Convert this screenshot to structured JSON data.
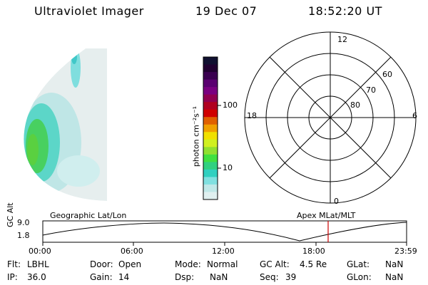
{
  "header": {
    "instrument": "Ultraviolet Imager",
    "date": "19 Dec 07",
    "time": "18:52:20 UT"
  },
  "colorbar": {
    "unit_label": "photon cm⁻²s⁻¹",
    "ticks": [
      "100",
      "10"
    ],
    "colors": [
      "#101030",
      "#200030",
      "#3a0050",
      "#5a0070",
      "#7a0080",
      "#900050",
      "#b00020",
      "#d00000",
      "#e06000",
      "#f0a000",
      "#f0e000",
      "#d0f020",
      "#90e030",
      "#40e040",
      "#30d080",
      "#30d0c0",
      "#80e0e0",
      "#c0e8e8",
      "#e0f0f0"
    ]
  },
  "polar": {
    "mlt_labels": [
      "12",
      "18",
      "6",
      "0"
    ],
    "lat_labels": [
      "60",
      "70",
      "80"
    ]
  },
  "timeline": {
    "left_label": "Geographic Lat/Lon",
    "right_label": "Apex MLat/MLT",
    "y_axis_label": "GC Alt",
    "y_ticks": [
      "9.0",
      "1.8"
    ],
    "x_ticks": [
      "00:00",
      "06:00",
      "12:00",
      "18:00",
      "23:59"
    ],
    "marker_color": "#cc0000"
  },
  "footer": {
    "flt_label": "Flt:",
    "flt_value": "LBHL",
    "ip_label": "IP:",
    "ip_value": "36.0",
    "door_label": "Door:",
    "door_value": "Open",
    "gain_label": "Gain:",
    "gain_value": "14",
    "mode_label": "Mode:",
    "mode_value": "Normal",
    "dsp_label": "Dsp:",
    "dsp_value": "NaN",
    "gcalt_label": "GC Alt:",
    "gcalt_value": "4.5 Re",
    "seq_label": "Seq:",
    "seq_value": "39",
    "glat_label": "GLat:",
    "glat_value": "NaN",
    "glon_label": "GLon:",
    "glon_value": "NaN"
  }
}
